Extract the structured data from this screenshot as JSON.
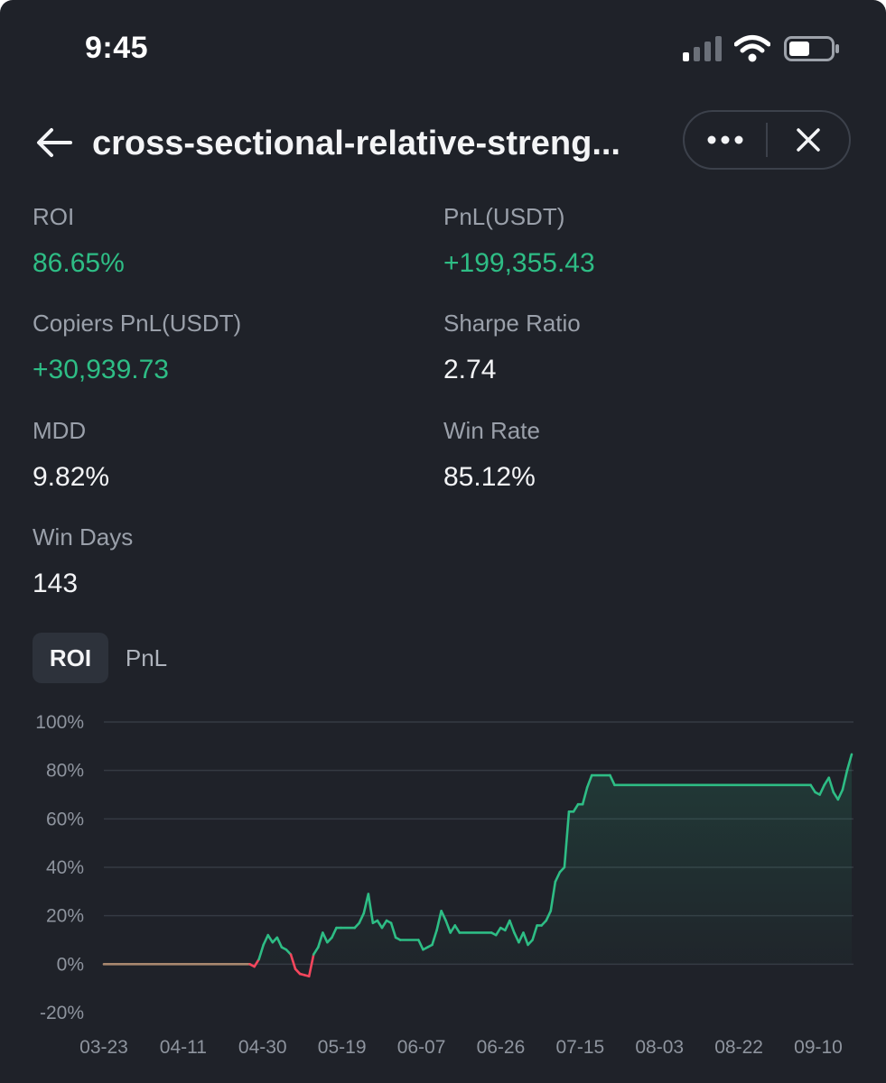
{
  "status_bar": {
    "time": "9:45",
    "icons": [
      "cellular-signal-icon",
      "wifi-icon",
      "battery-icon"
    ]
  },
  "header": {
    "title": "cross-sectional-relative-streng...",
    "back_icon": "arrow-left-icon",
    "more_icon": "more-horizontal-icon",
    "close_icon": "close-icon"
  },
  "stats": {
    "roi": {
      "label": "ROI",
      "value": "86.65%"
    },
    "pnl": {
      "label": "PnL(USDT)",
      "value": "+199,355.43"
    },
    "copiers_pnl": {
      "label": "Copiers PnL(USDT)",
      "value": "+30,939.73"
    },
    "sharpe": {
      "label": "Sharpe Ratio",
      "value": "2.74"
    },
    "mdd": {
      "label": "MDD",
      "value": "9.82%"
    },
    "win_rate": {
      "label": "Win Rate",
      "value": "85.12%"
    },
    "win_days": {
      "label": "Win Days",
      "value": "143"
    }
  },
  "tabs": {
    "roi_label": "ROI",
    "pnl_label": "PnL",
    "active": "ROI"
  },
  "colors": {
    "positive": "#2ebd85",
    "negative": "#f6465d",
    "background": "#1f2229"
  },
  "chart_data": {
    "type": "line",
    "title": "",
    "xlabel": "",
    "ylabel": "",
    "ylim": [
      -20,
      100
    ],
    "y_ticks": [
      "100%",
      "80%",
      "60%",
      "40%",
      "20%",
      "0%",
      "-20%"
    ],
    "x_ticks": [
      "03-23",
      "04-11",
      "04-30",
      "05-19",
      "06-07",
      "06-26",
      "07-15",
      "08-03",
      "08-22",
      "09-10"
    ],
    "grid": true,
    "legend": "none",
    "series": [
      {
        "values_percent": [
          [
            0,
            0
          ],
          [
            32,
            0
          ],
          [
            33,
            -1
          ],
          [
            34,
            2
          ],
          [
            35,
            8
          ],
          [
            36,
            12
          ],
          [
            37,
            9
          ],
          [
            38,
            11
          ],
          [
            39,
            7
          ],
          [
            40,
            6
          ],
          [
            41,
            4
          ],
          [
            42,
            -2
          ],
          [
            43,
            -4
          ],
          [
            44,
            -4.5
          ],
          [
            45,
            -5
          ],
          [
            46,
            4
          ],
          [
            47,
            7
          ],
          [
            48,
            13
          ],
          [
            49,
            9
          ],
          [
            50,
            11
          ],
          [
            51,
            15
          ],
          [
            52,
            15
          ],
          [
            55,
            15
          ],
          [
            56,
            17
          ],
          [
            57,
            21
          ],
          [
            58,
            29
          ],
          [
            59,
            17
          ],
          [
            60,
            18
          ],
          [
            61,
            15
          ],
          [
            62,
            18
          ],
          [
            63,
            17
          ],
          [
            64,
            11
          ],
          [
            65,
            10
          ],
          [
            69,
            10
          ],
          [
            70,
            6
          ],
          [
            71,
            7
          ],
          [
            72,
            8
          ],
          [
            73,
            14
          ],
          [
            74,
            22
          ],
          [
            75,
            18
          ],
          [
            76,
            13
          ],
          [
            77,
            16
          ],
          [
            78,
            13
          ],
          [
            85,
            13
          ],
          [
            86,
            12
          ],
          [
            87,
            15
          ],
          [
            88,
            14
          ],
          [
            89,
            18
          ],
          [
            90,
            13
          ],
          [
            91,
            9
          ],
          [
            92,
            13
          ],
          [
            93,
            8
          ],
          [
            94,
            10
          ],
          [
            95,
            16
          ],
          [
            96,
            16
          ],
          [
            97,
            18
          ],
          [
            98,
            22
          ],
          [
            99,
            34
          ],
          [
            100,
            38
          ],
          [
            101,
            40
          ],
          [
            102,
            63
          ],
          [
            103,
            63
          ],
          [
            104,
            66
          ],
          [
            105,
            66
          ],
          [
            106,
            73
          ],
          [
            107,
            78
          ],
          [
            111,
            78
          ],
          [
            112,
            74
          ],
          [
            155,
            74
          ],
          [
            156,
            71
          ],
          [
            157,
            70
          ],
          [
            158,
            74
          ],
          [
            159,
            77
          ],
          [
            160,
            71
          ],
          [
            161,
            68
          ],
          [
            162,
            72
          ],
          [
            163,
            80
          ],
          [
            164,
            86.65
          ]
        ]
      }
    ]
  }
}
